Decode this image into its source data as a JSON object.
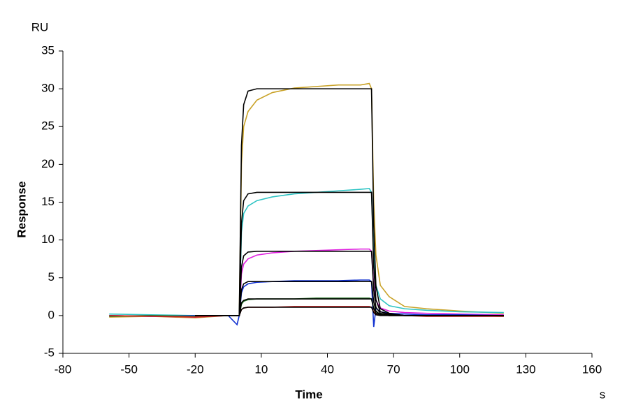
{
  "chart_data": {
    "type": "line",
    "y_unit": "RU",
    "ylabel": "Response",
    "xlabel": "Time",
    "x_unit": "s",
    "xlim": [
      -80,
      160
    ],
    "xticks": [
      -80,
      -50,
      -20,
      10,
      40,
      70,
      100,
      130,
      160
    ],
    "ylim": [
      -5,
      35
    ],
    "yticks": [
      -5,
      0,
      5,
      10,
      15,
      20,
      25,
      30,
      35
    ],
    "grid": false,
    "x": [
      -59,
      -40,
      -20,
      -5,
      -1,
      0,
      1,
      2,
      4,
      8,
      15,
      25,
      35,
      45,
      55,
      59,
      60,
      61,
      62,
      64,
      68,
      75,
      85,
      100,
      120
    ],
    "series": [
      {
        "color": "#c9a227",
        "values": [
          -0.2,
          -0.1,
          -0.3,
          0,
          0,
          0,
          20,
          25,
          27,
          28.5,
          29.5,
          30.1,
          30.3,
          30.5,
          30.5,
          30.7,
          30,
          15,
          8,
          4,
          2.5,
          1.2,
          0.9,
          0.6,
          0.3
        ]
      },
      {
        "color": "#2ec4c4",
        "values": [
          0.2,
          0.1,
          0,
          0,
          0,
          0,
          11,
          13.5,
          14.5,
          15.2,
          15.7,
          16.1,
          16.3,
          16.5,
          16.7,
          16.8,
          16.3,
          8,
          4,
          2.2,
          1.3,
          0.9,
          0.7,
          0.5,
          0.4
        ]
      },
      {
        "color": "#e020e0",
        "values": [
          0,
          -0.1,
          -0.2,
          0,
          0,
          0,
          5.5,
          6.8,
          7.5,
          8,
          8.3,
          8.5,
          8.6,
          8.7,
          8.8,
          8.8,
          8.5,
          4,
          2,
          1,
          0.6,
          0.4,
          0.3,
          0.2,
          0.1
        ]
      },
      {
        "color": "#1030d0",
        "values": [
          0,
          -0.1,
          0,
          0,
          -1.2,
          0,
          3,
          3.8,
          4.2,
          4.4,
          4.5,
          4.6,
          4.6,
          4.6,
          4.7,
          4.7,
          4.5,
          -1.5,
          1,
          0.5,
          0.3,
          0.2,
          0.1,
          0.1,
          0
        ]
      },
      {
        "color": "#207020",
        "values": [
          -0.1,
          0,
          -0.1,
          0,
          0,
          0,
          1.5,
          1.9,
          2.1,
          2.2,
          2.2,
          2.2,
          2.3,
          2.3,
          2.3,
          2.3,
          2.2,
          1,
          0.5,
          0.2,
          0.1,
          0,
          0,
          0,
          -0.1
        ]
      },
      {
        "color": "#d02020",
        "values": [
          0,
          -0.1,
          -0.2,
          0,
          0,
          0,
          0.8,
          1,
          1.1,
          1.1,
          1.1,
          1.2,
          1.2,
          1.2,
          1.2,
          1.2,
          1.1,
          0.5,
          0.2,
          0.1,
          0,
          0,
          -0.1,
          -0.1,
          -0.1
        ]
      },
      {
        "color": "#000000",
        "values": [
          null,
          null,
          0,
          0,
          0,
          0,
          22.5,
          27.9,
          29.7,
          30,
          30,
          30,
          30,
          30,
          30,
          30,
          30,
          12,
          3.9,
          0.9,
          0.3,
          0,
          0,
          0,
          0
        ]
      },
      {
        "color": "#000000",
        "values": [
          null,
          null,
          0,
          0,
          0,
          0,
          12.2,
          15.2,
          16.1,
          16.3,
          16.3,
          16.3,
          16.3,
          16.3,
          16.3,
          16.3,
          16.3,
          6.5,
          2.1,
          0.5,
          0.2,
          0,
          0,
          0,
          0
        ]
      },
      {
        "color": "#000000",
        "values": [
          null,
          null,
          0,
          0,
          0,
          0,
          6.4,
          7.9,
          8.4,
          8.5,
          8.5,
          8.5,
          8.5,
          8.5,
          8.5,
          8.5,
          8.5,
          3.4,
          1.1,
          0.3,
          0.1,
          0,
          0,
          0,
          0
        ]
      },
      {
        "color": "#000000",
        "values": [
          null,
          null,
          0,
          0,
          0,
          0,
          3.4,
          4.2,
          4.5,
          4.5,
          4.5,
          4.5,
          4.5,
          4.5,
          4.5,
          4.5,
          4.5,
          1.8,
          0.6,
          0.1,
          0,
          0,
          0,
          0,
          0
        ]
      },
      {
        "color": "#000000",
        "values": [
          null,
          null,
          0,
          0,
          0,
          0,
          1.7,
          2,
          2.2,
          2.2,
          2.2,
          2.2,
          2.2,
          2.2,
          2.2,
          2.2,
          2.2,
          0.9,
          0.3,
          0.1,
          0,
          0,
          0,
          0,
          0
        ]
      },
      {
        "color": "#000000",
        "values": [
          null,
          null,
          0,
          0,
          0,
          0,
          0.8,
          1,
          1.1,
          1.1,
          1.1,
          1.1,
          1.1,
          1.1,
          1.1,
          1.1,
          1.1,
          0.4,
          0.1,
          0,
          0,
          0,
          0,
          0,
          0
        ]
      }
    ]
  }
}
